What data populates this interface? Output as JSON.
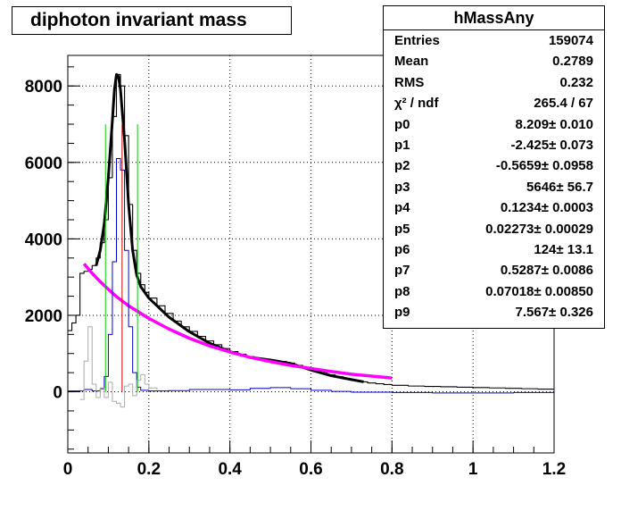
{
  "title": "diphoton invariant mass",
  "stats": {
    "name": "hMassAny",
    "rows": [
      {
        "key": "Entries",
        "value": "159074"
      },
      {
        "key": "Mean",
        "value": "0.2789"
      },
      {
        "key": "RMS",
        "value": "0.232"
      },
      {
        "key": "χ² / ndf",
        "value": "265.4 / 67"
      },
      {
        "key": "p0",
        "value": "8.209± 0.010"
      },
      {
        "key": "p1",
        "value": "-2.425± 0.073"
      },
      {
        "key": "p2",
        "value": "-0.5659± 0.0958"
      },
      {
        "key": "p3",
        "value": "5646± 56.7"
      },
      {
        "key": "p4",
        "value": "0.1234± 0.0003"
      },
      {
        "key": "p5",
        "value": "0.02273± 0.00029"
      },
      {
        "key": "p6",
        "value": "124± 13.1"
      },
      {
        "key": "p7",
        "value": "0.5287± 0.0086"
      },
      {
        "key": "p8",
        "value": "0.07018± 0.00850"
      },
      {
        "key": "p9",
        "value": "7.567± 0.326"
      }
    ]
  },
  "chart_data": {
    "type": "line",
    "title": "diphoton invariant mass",
    "xlabel": "",
    "ylabel": "",
    "xlim": [
      0,
      1.2
    ],
    "ylim": [
      -1600,
      8800
    ],
    "x_ticks": [
      "0",
      "0.2",
      "0.4",
      "0.6",
      "0.8",
      "1",
      "1.2"
    ],
    "y_ticks": [
      "0",
      "2000",
      "4000",
      "6000",
      "8000"
    ],
    "grid": true,
    "colors": {
      "data": "#000000",
      "fit": "#000000",
      "background": "#ff00ff",
      "signal": "#0000cc",
      "sideband": "#aaaaaa",
      "window": "#00cc00",
      "peak": "#cc0000"
    },
    "series": [
      {
        "values": [
          [
            0.0,
            1600
          ],
          [
            0.01,
            1800
          ],
          [
            0.02,
            2000
          ],
          [
            0.03,
            3100
          ],
          [
            0.04,
            3150
          ],
          [
            0.05,
            3200
          ],
          [
            0.06,
            3300
          ],
          [
            0.07,
            3500
          ],
          [
            0.08,
            3900
          ],
          [
            0.09,
            4500
          ],
          [
            0.1,
            5600
          ],
          [
            0.11,
            7200
          ],
          [
            0.12,
            8300
          ],
          [
            0.13,
            8000
          ],
          [
            0.14,
            6700
          ],
          [
            0.15,
            4900
          ],
          [
            0.16,
            3700
          ],
          [
            0.17,
            3100
          ],
          [
            0.18,
            2800
          ],
          [
            0.19,
            2600
          ],
          [
            0.2,
            2450
          ],
          [
            0.22,
            2250
          ],
          [
            0.24,
            2050
          ],
          [
            0.26,
            1850
          ],
          [
            0.28,
            1700
          ],
          [
            0.3,
            1580
          ],
          [
            0.32,
            1450
          ],
          [
            0.34,
            1330
          ],
          [
            0.36,
            1230
          ],
          [
            0.38,
            1130
          ],
          [
            0.4,
            1050
          ],
          [
            0.42,
            980
          ],
          [
            0.44,
            920
          ],
          [
            0.46,
            870
          ],
          [
            0.48,
            840
          ],
          [
            0.5,
            820
          ],
          [
            0.52,
            790
          ],
          [
            0.54,
            750
          ],
          [
            0.56,
            690
          ],
          [
            0.58,
            620
          ],
          [
            0.6,
            560
          ],
          [
            0.62,
            500
          ],
          [
            0.64,
            440
          ],
          [
            0.66,
            390
          ],
          [
            0.68,
            340
          ],
          [
            0.7,
            300
          ],
          [
            0.72,
            260
          ],
          [
            0.74,
            230
          ],
          [
            0.76,
            210
          ],
          [
            0.78,
            190
          ],
          [
            0.8,
            170
          ],
          [
            0.84,
            150
          ],
          [
            0.88,
            140
          ],
          [
            0.92,
            130
          ],
          [
            0.96,
            120
          ],
          [
            1.0,
            110
          ],
          [
            1.04,
            100
          ],
          [
            1.08,
            90
          ],
          [
            1.12,
            80
          ],
          [
            1.16,
            70
          ],
          [
            1.2,
            60
          ]
        ]
      },
      {
        "values": [
          [
            0.07,
            3300
          ],
          [
            0.08,
            3700
          ],
          [
            0.09,
            4400
          ],
          [
            0.1,
            5600
          ],
          [
            0.11,
            7100
          ],
          [
            0.115,
            7900
          ],
          [
            0.12,
            8300
          ],
          [
            0.125,
            8250
          ],
          [
            0.13,
            7900
          ],
          [
            0.14,
            6600
          ],
          [
            0.15,
            4900
          ],
          [
            0.16,
            3700
          ],
          [
            0.17,
            3050
          ],
          [
            0.18,
            2750
          ],
          [
            0.2,
            2450
          ],
          [
            0.25,
            1950
          ],
          [
            0.3,
            1570
          ],
          [
            0.35,
            1270
          ],
          [
            0.4,
            1050
          ],
          [
            0.45,
            900
          ],
          [
            0.5,
            830
          ],
          [
            0.55,
            740
          ],
          [
            0.6,
            570
          ],
          [
            0.65,
            420
          ],
          [
            0.7,
            320
          ],
          [
            0.73,
            260
          ]
        ]
      },
      {
        "values": [
          [
            0.04,
            3350
          ],
          [
            0.06,
            3100
          ],
          [
            0.08,
            2880
          ],
          [
            0.1,
            2680
          ],
          [
            0.12,
            2490
          ],
          [
            0.15,
            2250
          ],
          [
            0.2,
            1920
          ],
          [
            0.25,
            1640
          ],
          [
            0.3,
            1400
          ],
          [
            0.35,
            1200
          ],
          [
            0.4,
            1040
          ],
          [
            0.45,
            900
          ],
          [
            0.5,
            790
          ],
          [
            0.55,
            690
          ],
          [
            0.6,
            610
          ],
          [
            0.65,
            530
          ],
          [
            0.7,
            460
          ],
          [
            0.75,
            410
          ],
          [
            0.8,
            360
          ]
        ]
      },
      {
        "values": [
          [
            0.0,
            20
          ],
          [
            0.02,
            20
          ],
          [
            0.04,
            60
          ],
          [
            0.06,
            20
          ],
          [
            0.08,
            80
          ],
          [
            0.09,
            400
          ],
          [
            0.1,
            1500
          ],
          [
            0.11,
            3400
          ],
          [
            0.12,
            6100
          ],
          [
            0.13,
            5800
          ],
          [
            0.14,
            3700
          ],
          [
            0.15,
            1700
          ],
          [
            0.16,
            500
          ],
          [
            0.17,
            120
          ],
          [
            0.18,
            40
          ],
          [
            0.2,
            20
          ],
          [
            0.25,
            30
          ],
          [
            0.3,
            60
          ],
          [
            0.35,
            60
          ],
          [
            0.4,
            50
          ],
          [
            0.45,
            90
          ],
          [
            0.5,
            110
          ],
          [
            0.55,
            80
          ],
          [
            0.6,
            40
          ],
          [
            0.65,
            10
          ],
          [
            0.7,
            -10
          ],
          [
            0.8,
            -20
          ],
          [
            0.9,
            -30
          ],
          [
            1.0,
            -30
          ],
          [
            1.1,
            -20
          ],
          [
            1.2,
            -20
          ]
        ]
      },
      {
        "values": [
          [
            0.03,
            -200
          ],
          [
            0.04,
            800
          ],
          [
            0.05,
            1700
          ],
          [
            0.06,
            200
          ],
          [
            0.07,
            -150
          ],
          [
            0.08,
            100
          ],
          [
            0.09,
            -150
          ],
          [
            0.1,
            250
          ],
          [
            0.11,
            -250
          ],
          [
            0.12,
            -300
          ],
          [
            0.13,
            -400
          ],
          [
            0.14,
            150
          ],
          [
            0.15,
            200
          ],
          [
            0.16,
            -100
          ],
          [
            0.17,
            300
          ],
          [
            0.18,
            450
          ],
          [
            0.19,
            200
          ],
          [
            0.2,
            100
          ],
          [
            0.22,
            50
          ]
        ]
      },
      {
        "values": [
          [
            0.093,
            0
          ],
          [
            0.093,
            7000
          ],
          [
            0.172,
            0
          ],
          [
            0.172,
            7000
          ]
        ]
      },
      {
        "values": [
          [
            0.134,
            0
          ],
          [
            0.134,
            7000
          ]
        ]
      }
    ]
  }
}
